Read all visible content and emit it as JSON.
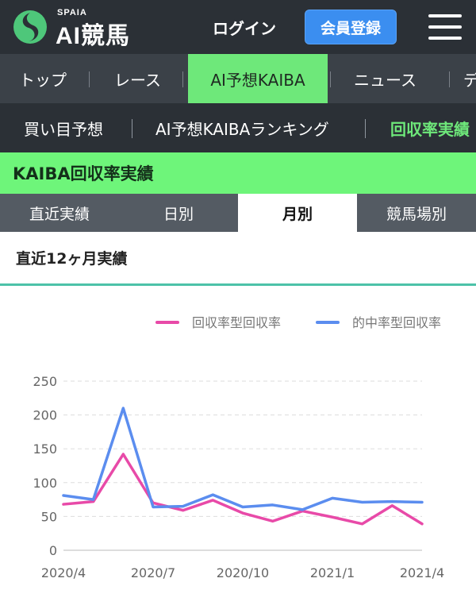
{
  "header": {
    "logo_small": "SPAIA",
    "logo_big": "AI競馬",
    "login_label": "ログイン",
    "register_label": "会員登録",
    "menu_icon": "hamburger-menu-icon",
    "logo_icon": "spaia-logo-icon"
  },
  "nav": {
    "items": [
      {
        "label": "トップ",
        "active": false
      },
      {
        "label": "レース",
        "active": false
      },
      {
        "label": "AI予想KAIBA",
        "active": true
      },
      {
        "label": "ニュース",
        "active": false
      },
      {
        "label": "デ",
        "active": false
      }
    ]
  },
  "subnav": {
    "items": [
      {
        "label": "買い目予想",
        "active": false
      },
      {
        "label": "AI予想KAIBAランキング",
        "active": false
      },
      {
        "label": "回収率実績",
        "active": true
      }
    ]
  },
  "section_title": "KAIBA回収率実績",
  "tabs": [
    {
      "label": "直近実績",
      "active": false
    },
    {
      "label": "日別",
      "active": false
    },
    {
      "label": "月別",
      "active": true
    },
    {
      "label": "競馬場別",
      "active": false
    }
  ],
  "subhead": "直近12ヶ月実績",
  "colors": {
    "accent_green": "#6ee87a",
    "register_blue": "#3b8ef0",
    "series_pink": "#e84aa8",
    "series_blue": "#5b8def"
  },
  "chart_data": {
    "type": "line",
    "title": "",
    "xlabel": "",
    "ylabel": "",
    "x": [
      "2020/4",
      "2020/5",
      "2020/6",
      "2020/7",
      "2020/8",
      "2020/9",
      "2020/10",
      "2020/11",
      "2020/12",
      "2021/1",
      "2021/2",
      "2021/3",
      "2021/4"
    ],
    "xtick_labels": [
      "2020/4",
      "2020/7",
      "2020/10",
      "2021/1",
      "2021/4"
    ],
    "ylim": [
      0,
      250
    ],
    "yticks": [
      0,
      50,
      100,
      150,
      200,
      250
    ],
    "grid": true,
    "legend_position": "top-right",
    "series": [
      {
        "name": "回収率型回収率",
        "color": "#e84aa8",
        "values": [
          68,
          72,
          142,
          70,
          59,
          74,
          55,
          43,
          58,
          49,
          39,
          66,
          39
        ]
      },
      {
        "name": "的中率型回収率",
        "color": "#5b8def",
        "values": [
          81,
          75,
          210,
          64,
          65,
          82,
          64,
          67,
          60,
          77,
          71,
          72,
          71
        ]
      }
    ]
  }
}
